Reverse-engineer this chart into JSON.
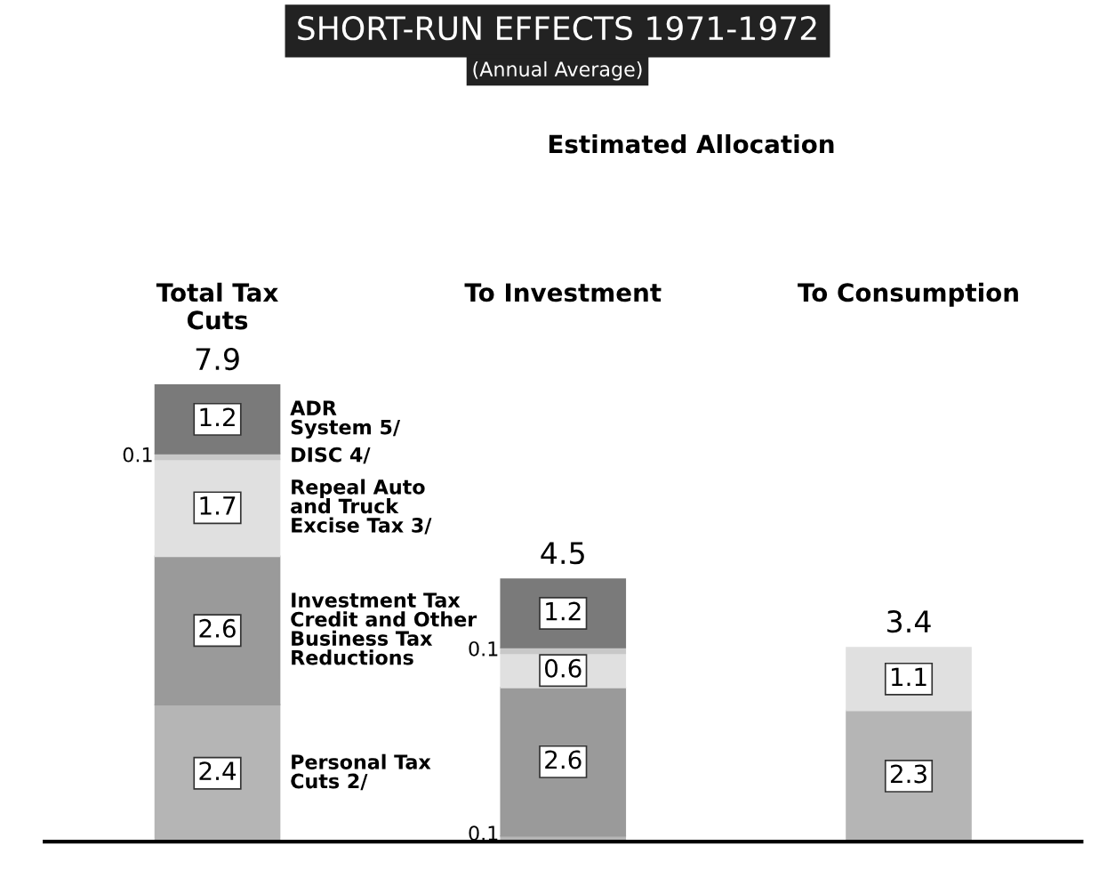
{
  "chart_data": {
    "type": "bar",
    "stacked": true,
    "title": "SHORT-RUN EFFECTS 1971-1972",
    "subtitle": "(Annual Average)",
    "annotations": [
      "Estimated Allocation"
    ],
    "categories": [
      "Total Tax\nCuts",
      "To Investment",
      "To Consumption"
    ],
    "series": [
      {
        "name": "Personal Tax\nCuts 2/",
        "color": "#b5b5b5",
        "values": [
          2.4,
          0.1,
          2.3
        ]
      },
      {
        "name": "Investment Tax\nCredit and Other\nBusiness Tax\nReductions",
        "color": "#9a9a9a",
        "values": [
          2.6,
          2.6,
          null
        ]
      },
      {
        "name": "Repeal Auto\nand Truck\nExcise Tax 3/",
        "color": "#e0e0e0",
        "values": [
          1.7,
          0.6,
          1.1
        ]
      },
      {
        "name": "DISC 4/",
        "color": "#c8c8c8",
        "values": [
          0.1,
          0.1,
          null
        ]
      },
      {
        "name": "ADR\nSystem 5/",
        "color": "#7a7a7a",
        "values": [
          1.2,
          1.2,
          null
        ]
      }
    ],
    "data_labels": true,
    "totals": [
      "7.9",
      "4.5",
      "3.4"
    ],
    "legend": false,
    "grid": false
  }
}
